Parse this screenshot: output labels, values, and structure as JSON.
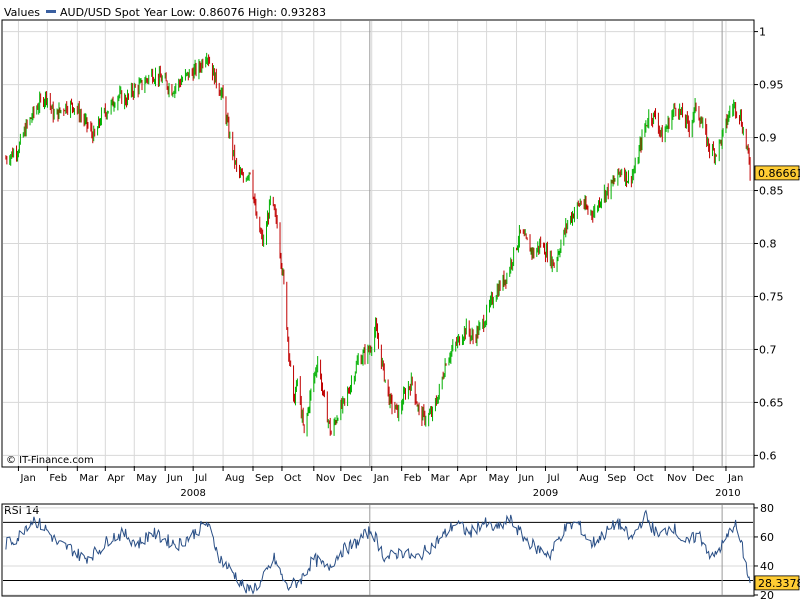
{
  "header": {
    "values_label": "Values",
    "series_label": "AUD/USD Spot",
    "year_low_high": "Year Low: 0.86076 High: 0.93283"
  },
  "watermark": "© IT-Finance.com",
  "colors": {
    "up": "#00b000",
    "down": "#c00000",
    "rsi_line": "#2a4f86",
    "grid": "#d8d8d8",
    "axis": "#000000",
    "price_tag_bg": "#ffcc33",
    "legend_swatch": "#3a5fa0"
  },
  "chart_data": [
    {
      "type": "candlestick",
      "title": "",
      "series_name": "AUD/USD Spot",
      "ylim": [
        0.59,
        1.01
      ],
      "yticks": [
        0.6,
        0.65,
        0.7,
        0.75,
        0.8,
        0.85,
        0.9,
        0.95,
        1
      ],
      "ytick_labels": [
        "0.6",
        "0.65",
        "0.7",
        "0.75",
        "0.8",
        "0.85",
        "0.9",
        "0.95",
        "1"
      ],
      "last_value": "0.86661",
      "xlim": [
        "2007-12-17",
        "2010-02-01"
      ],
      "grid": true,
      "month_ticks": [
        {
          "date": "2008-01-02",
          "label": "Jan"
        },
        {
          "date": "2008-02-01",
          "label": "Feb"
        },
        {
          "date": "2008-03-03",
          "label": "Mar"
        },
        {
          "date": "2008-04-01",
          "label": "Apr"
        },
        {
          "date": "2008-05-01",
          "label": "May"
        },
        {
          "date": "2008-06-02",
          "label": "Jun"
        },
        {
          "date": "2008-07-01",
          "label": "Jul"
        },
        {
          "date": "2008-08-01",
          "label": "Aug"
        },
        {
          "date": "2008-09-01",
          "label": "Sep"
        },
        {
          "date": "2008-10-01",
          "label": "Oct"
        },
        {
          "date": "2008-11-03",
          "label": "Nov"
        },
        {
          "date": "2008-12-01",
          "label": "Dec"
        },
        {
          "date": "2009-01-02",
          "label": "Jan"
        },
        {
          "date": "2009-02-02",
          "label": "Feb"
        },
        {
          "date": "2009-03-02",
          "label": "Mar"
        },
        {
          "date": "2009-04-01",
          "label": "Apr"
        },
        {
          "date": "2009-05-01",
          "label": "May"
        },
        {
          "date": "2009-06-01",
          "label": "Jun"
        },
        {
          "date": "2009-07-01",
          "label": "Jul"
        },
        {
          "date": "2009-08-03",
          "label": "Aug"
        },
        {
          "date": "2009-09-01",
          "label": "Sep"
        },
        {
          "date": "2009-10-01",
          "label": "Oct"
        },
        {
          "date": "2009-11-02",
          "label": "Nov"
        },
        {
          "date": "2009-12-01",
          "label": "Dec"
        },
        {
          "date": "2010-01-04",
          "label": "Jan"
        }
      ],
      "year_labels": [
        {
          "date": "2008-07-01",
          "label": "2008"
        },
        {
          "date": "2009-07-01",
          "label": "2009"
        },
        {
          "date": "2010-01-06",
          "label": "2010"
        }
      ],
      "year_separators": [
        "2008-12-31",
        "2009-12-31"
      ],
      "closes": [
        [
          "2007-12-20",
          0.88
        ],
        [
          "2008-01-02",
          0.89
        ],
        [
          "2008-01-10",
          0.91
        ],
        [
          "2008-01-22",
          0.93
        ],
        [
          "2008-01-31",
          0.94
        ],
        [
          "2008-02-08",
          0.92
        ],
        [
          "2008-02-20",
          0.93
        ],
        [
          "2008-02-29",
          0.93
        ],
        [
          "2008-03-07",
          0.92
        ],
        [
          "2008-03-14",
          0.91
        ],
        [
          "2008-03-21",
          0.9
        ],
        [
          "2008-03-28",
          0.92
        ],
        [
          "2008-04-07",
          0.93
        ],
        [
          "2008-04-14",
          0.94
        ],
        [
          "2008-04-22",
          0.935
        ],
        [
          "2008-04-30",
          0.945
        ],
        [
          "2008-05-09",
          0.95
        ],
        [
          "2008-05-19",
          0.96
        ],
        [
          "2008-05-30",
          0.955
        ],
        [
          "2008-06-09",
          0.945
        ],
        [
          "2008-06-20",
          0.955
        ],
        [
          "2008-06-27",
          0.96
        ],
        [
          "2008-07-07",
          0.965
        ],
        [
          "2008-07-15",
          0.98
        ],
        [
          "2008-07-22",
          0.96
        ],
        [
          "2008-07-31",
          0.94
        ],
        [
          "2008-08-08",
          0.9
        ],
        [
          "2008-08-15",
          0.87
        ],
        [
          "2008-08-22",
          0.86
        ],
        [
          "2008-08-29",
          0.87
        ],
        [
          "2008-09-05",
          0.82
        ],
        [
          "2008-09-12",
          0.8
        ],
        [
          "2008-09-19",
          0.84
        ],
        [
          "2008-09-26",
          0.82
        ],
        [
          "2008-10-03",
          0.76
        ],
        [
          "2008-10-08",
          0.7
        ],
        [
          "2008-10-13",
          0.65
        ],
        [
          "2008-10-17",
          0.67
        ],
        [
          "2008-10-24",
          0.62
        ],
        [
          "2008-10-31",
          0.66
        ],
        [
          "2008-11-07",
          0.69
        ],
        [
          "2008-11-14",
          0.65
        ],
        [
          "2008-11-21",
          0.62
        ],
        [
          "2008-11-28",
          0.64
        ],
        [
          "2008-12-05",
          0.65
        ],
        [
          "2008-12-12",
          0.67
        ],
        [
          "2008-12-19",
          0.69
        ],
        [
          "2008-12-31",
          0.7
        ],
        [
          "2009-01-06",
          0.72
        ],
        [
          "2009-01-14",
          0.68
        ],
        [
          "2009-01-21",
          0.65
        ],
        [
          "2009-01-30",
          0.64
        ],
        [
          "2009-02-06",
          0.66
        ],
        [
          "2009-02-13",
          0.67
        ],
        [
          "2009-02-20",
          0.64
        ],
        [
          "2009-02-27",
          0.635
        ],
        [
          "2009-03-06",
          0.64
        ],
        [
          "2009-03-13",
          0.66
        ],
        [
          "2009-03-20",
          0.69
        ],
        [
          "2009-03-27",
          0.7
        ],
        [
          "2009-04-03",
          0.71
        ],
        [
          "2009-04-10",
          0.72
        ],
        [
          "2009-04-17",
          0.71
        ],
        [
          "2009-04-24",
          0.72
        ],
        [
          "2009-04-30",
          0.73
        ],
        [
          "2009-05-08",
          0.75
        ],
        [
          "2009-05-15",
          0.76
        ],
        [
          "2009-05-22",
          0.77
        ],
        [
          "2009-05-29",
          0.79
        ],
        [
          "2009-06-05",
          0.81
        ],
        [
          "2009-06-12",
          0.8
        ],
        [
          "2009-06-19",
          0.79
        ],
        [
          "2009-06-26",
          0.8
        ],
        [
          "2009-07-03",
          0.79
        ],
        [
          "2009-07-10",
          0.78
        ],
        [
          "2009-07-17",
          0.8
        ],
        [
          "2009-07-24",
          0.82
        ],
        [
          "2009-07-31",
          0.83
        ],
        [
          "2009-08-07",
          0.84
        ],
        [
          "2009-08-14",
          0.83
        ],
        [
          "2009-08-21",
          0.83
        ],
        [
          "2009-08-28",
          0.845
        ],
        [
          "2009-09-04",
          0.85
        ],
        [
          "2009-09-11",
          0.86
        ],
        [
          "2009-09-18",
          0.87
        ],
        [
          "2009-09-25",
          0.86
        ],
        [
          "2009-10-02",
          0.87
        ],
        [
          "2009-10-09",
          0.9
        ],
        [
          "2009-10-16",
          0.92
        ],
        [
          "2009-10-23",
          0.92
        ],
        [
          "2009-10-30",
          0.9
        ],
        [
          "2009-11-06",
          0.915
        ],
        [
          "2009-11-13",
          0.93
        ],
        [
          "2009-11-20",
          0.92
        ],
        [
          "2009-11-27",
          0.91
        ],
        [
          "2009-12-04",
          0.93
        ],
        [
          "2009-12-11",
          0.91
        ],
        [
          "2009-12-18",
          0.89
        ],
        [
          "2009-12-24",
          0.885
        ],
        [
          "2009-12-31",
          0.9
        ],
        [
          "2010-01-08",
          0.925
        ],
        [
          "2010-01-13",
          0.93
        ],
        [
          "2010-01-19",
          0.92
        ],
        [
          "2010-01-22",
          0.905
        ],
        [
          "2010-01-26",
          0.89
        ],
        [
          "2010-01-29",
          0.866
        ]
      ]
    },
    {
      "type": "line",
      "title": "RSI 14",
      "series_name": "RSI 14",
      "ylim": [
        20,
        82
      ],
      "yticks": [
        20,
        40,
        60,
        80
      ],
      "ytick_labels": [
        "20",
        "40",
        "60",
        "80"
      ],
      "reference_lines": [
        30,
        70
      ],
      "last_value": "28.3378",
      "points": [
        [
          "2007-12-20",
          55
        ],
        [
          "2008-01-02",
          60
        ],
        [
          "2008-01-10",
          68
        ],
        [
          "2008-01-18",
          72
        ],
        [
          "2008-01-31",
          65
        ],
        [
          "2008-02-12",
          55
        ],
        [
          "2008-02-25",
          52
        ],
        [
          "2008-03-10",
          45
        ],
        [
          "2008-03-24",
          50
        ],
        [
          "2008-04-07",
          60
        ],
        [
          "2008-04-21",
          62
        ],
        [
          "2008-05-05",
          55
        ],
        [
          "2008-05-19",
          63
        ],
        [
          "2008-06-02",
          58
        ],
        [
          "2008-06-16",
          55
        ],
        [
          "2008-07-01",
          62
        ],
        [
          "2008-07-15",
          70
        ],
        [
          "2008-07-29",
          45
        ],
        [
          "2008-08-12",
          35
        ],
        [
          "2008-08-26",
          23
        ],
        [
          "2008-09-09",
          28
        ],
        [
          "2008-09-23",
          45
        ],
        [
          "2008-10-06",
          25
        ],
        [
          "2008-10-20",
          30
        ],
        [
          "2008-11-03",
          45
        ],
        [
          "2008-11-17",
          38
        ],
        [
          "2008-12-01",
          50
        ],
        [
          "2008-12-15",
          55
        ],
        [
          "2009-01-02",
          65
        ],
        [
          "2009-01-16",
          45
        ],
        [
          "2009-02-02",
          50
        ],
        [
          "2009-02-16",
          45
        ],
        [
          "2009-03-02",
          52
        ],
        [
          "2009-03-16",
          60
        ],
        [
          "2009-03-30",
          70
        ],
        [
          "2009-04-13",
          62
        ],
        [
          "2009-04-27",
          70
        ],
        [
          "2009-05-11",
          65
        ],
        [
          "2009-05-25",
          72
        ],
        [
          "2009-06-08",
          60
        ],
        [
          "2009-06-22",
          52
        ],
        [
          "2009-07-06",
          48
        ],
        [
          "2009-07-20",
          65
        ],
        [
          "2009-08-03",
          70
        ],
        [
          "2009-08-17",
          55
        ],
        [
          "2009-08-31",
          62
        ],
        [
          "2009-09-14",
          70
        ],
        [
          "2009-09-28",
          58
        ],
        [
          "2009-10-12",
          75
        ],
        [
          "2009-10-26",
          60
        ],
        [
          "2009-11-09",
          68
        ],
        [
          "2009-11-23",
          55
        ],
        [
          "2009-12-07",
          62
        ],
        [
          "2009-12-21",
          45
        ],
        [
          "2010-01-04",
          58
        ],
        [
          "2010-01-13",
          70
        ],
        [
          "2010-01-21",
          52
        ],
        [
          "2010-01-29",
          28
        ]
      ]
    }
  ]
}
